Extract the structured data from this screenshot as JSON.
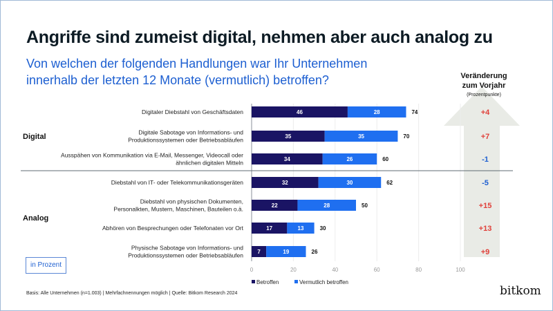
{
  "title": "Angriffe sind zumeist digital, nehmen aber auch analog zu",
  "subtitle_line1": "Von welchen der folgenden Handlungen war Ihr Unternehmen",
  "subtitle_line2": "innerhalb der letzten 12 Monate (vermutlich) betroffen?",
  "change_header": {
    "line1": "Veränderung",
    "line2": "zum Vorjahr",
    "unit": "(Prozentpunkte)"
  },
  "unit_box": "in Prozent",
  "footnote": "Basis: Alle Unternehmen (n=1.003) | Mehrfachnennungen möglich | Quelle: Bitkom Research 2024",
  "logo": "bitkom",
  "groups": [
    "Digital",
    "Analog"
  ],
  "colors": {
    "betroffen": "#1a1464",
    "vermutlich": "#1f6ff0",
    "positive": "#e0403a",
    "negative": "#1d5fd1",
    "arrow": "#e9ebe6"
  },
  "chart_data": {
    "type": "bar",
    "stacked": true,
    "orientation": "horizontal",
    "xlim": [
      0,
      100
    ],
    "xticks": [
      0,
      20,
      40,
      60,
      80,
      100
    ],
    "grid": true,
    "legend": "bottom",
    "categories": [
      [
        "Digitaler Diebstahl von Geschäftsdaten"
      ],
      [
        "Digitale Sabotage von Informations- und",
        "Produktionssystemen oder Betriebsabläufen"
      ],
      [
        "Ausspähen von Kommunikation via E-Mail, Messenger, Videocall oder",
        "ähnlichen digitalen Mitteln"
      ],
      [
        "Diebstahl von IT- oder Telekommunikationsgeräten"
      ],
      [
        "Diebstahl von physischen Dokumenten,",
        "Personalkten, Mustern, Maschinen, Bauteilen o.ä."
      ],
      [
        "Abhören von Besprechungen oder Telefonaten vor Ort"
      ],
      [
        "Physische Sabotage von Informations- und",
        "Produktionssystemen oder Betriebsabläufen"
      ]
    ],
    "group_of_category": [
      "Digital",
      "Digital",
      "Digital",
      "Analog",
      "Analog",
      "Analog",
      "Analog"
    ],
    "series": [
      {
        "name": "Betroffen",
        "values": [
          46,
          35,
          34,
          32,
          22,
          17,
          7
        ]
      },
      {
        "name": "Vermutlich betroffen",
        "values": [
          28,
          35,
          26,
          30,
          28,
          13,
          19
        ]
      }
    ],
    "totals": [
      74,
      70,
      60,
      62,
      50,
      30,
      26
    ],
    "change_vs_previous_year": [
      "+4",
      "+7",
      "-1",
      "-5",
      "+15",
      "+13",
      "+9"
    ]
  }
}
